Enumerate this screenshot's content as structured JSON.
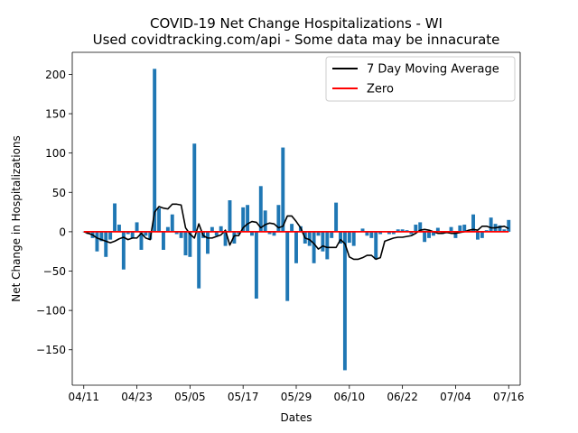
{
  "chart_data": {
    "type": "bar",
    "title_line1": "COVID-19 Net Change Hospitalizations - WI",
    "title_line2": "Used covidtracking.com/api - Some data may be innacurate",
    "xlabel": "Dates",
    "ylabel": "Net Change in Hospitalizations",
    "xlim": [
      -2.6,
      98.6
    ],
    "ylim": [
      -195,
      228
    ],
    "grid": false,
    "legend_placement": "top-right",
    "x_ticks": [
      {
        "x": 0,
        "label": "04/11"
      },
      {
        "x": 12,
        "label": "04/23"
      },
      {
        "x": 24,
        "label": "05/05"
      },
      {
        "x": 36,
        "label": "05/17"
      },
      {
        "x": 48,
        "label": "05/29"
      },
      {
        "x": 60,
        "label": "06/10"
      },
      {
        "x": 72,
        "label": "06/22"
      },
      {
        "x": 84,
        "label": "07/04"
      },
      {
        "x": 96,
        "label": "07/16"
      }
    ],
    "y_ticks": [
      {
        "y": 200,
        "label": "200"
      },
      {
        "y": 150,
        "label": "150"
      },
      {
        "y": 100,
        "label": "100"
      },
      {
        "y": 50,
        "label": "50"
      },
      {
        "y": 0,
        "label": "0"
      },
      {
        "y": -50,
        "label": "−50"
      },
      {
        "y": -100,
        "label": "−100"
      },
      {
        "y": -150,
        "label": "−150"
      }
    ],
    "bar_color": "#1f77b4",
    "series": [
      {
        "name": "7 Day Moving Average",
        "color": "#000000"
      },
      {
        "name": "Zero",
        "color": "#ff0000"
      }
    ],
    "x": [
      0,
      1,
      2,
      3,
      4,
      5,
      6,
      7,
      8,
      9,
      10,
      11,
      12,
      13,
      14,
      15,
      16,
      17,
      18,
      19,
      20,
      21,
      22,
      23,
      24,
      25,
      26,
      27,
      28,
      29,
      30,
      31,
      32,
      33,
      34,
      35,
      36,
      37,
      38,
      39,
      40,
      41,
      42,
      43,
      44,
      45,
      46,
      47,
      48,
      49,
      50,
      51,
      52,
      53,
      54,
      55,
      56,
      57,
      58,
      59,
      60,
      61,
      62,
      63,
      64,
      65,
      66,
      67,
      68,
      69,
      70,
      71,
      72,
      73,
      74,
      75,
      76,
      77,
      78,
      79,
      80,
      81,
      82,
      83,
      84,
      85,
      86,
      87,
      88,
      89,
      90,
      91,
      92,
      93,
      94,
      95,
      96
    ],
    "values": [
      0,
      -3,
      -8,
      -25,
      -12,
      -32,
      -10,
      36,
      9,
      -48,
      -3,
      -8,
      12,
      -23,
      -5,
      -10,
      207,
      30,
      -23,
      6,
      22,
      -3,
      -8,
      -30,
      -32,
      112,
      -72,
      -8,
      -28,
      6,
      -5,
      7,
      -18,
      40,
      -15,
      -3,
      31,
      34,
      -5,
      -85,
      58,
      27,
      -3,
      -5,
      34,
      107,
      -88,
      10,
      -40,
      7,
      -15,
      -18,
      -40,
      -5,
      -25,
      -35,
      -8,
      37,
      -15,
      -176,
      -14,
      -18,
      0,
      4,
      -5,
      -8,
      -35,
      -3,
      0,
      -3,
      -3,
      3,
      3,
      2,
      -3,
      9,
      12,
      -13,
      -8,
      -5,
      5,
      -3,
      0,
      6,
      -8,
      8,
      9,
      0,
      22,
      -10,
      -8,
      2,
      18,
      10,
      8,
      3,
      15
    ],
    "moving_avg": [
      0,
      -2,
      -4,
      -8,
      -10,
      -12,
      -14,
      -12,
      -9,
      -7,
      -10,
      -8,
      -8,
      -2,
      -8,
      -10,
      25,
      32,
      30,
      29,
      35,
      35,
      34,
      5,
      -3,
      -8,
      10,
      -5,
      -8,
      -8,
      -6,
      -4,
      2,
      -17,
      -5,
      -5,
      5,
      10,
      13,
      12,
      5,
      9,
      11,
      10,
      5,
      7,
      20,
      20,
      13,
      5,
      -8,
      -10,
      -15,
      -22,
      -18,
      -20,
      -20,
      -20,
      -10,
      -15,
      -32,
      -35,
      -35,
      -33,
      -30,
      -30,
      -35,
      -33,
      -12,
      -10,
      -8,
      -7,
      -7,
      -6,
      -5,
      -2,
      2,
      3,
      2,
      0,
      -2,
      -2,
      -1,
      -2,
      -2,
      -1,
      0,
      2,
      3,
      2,
      7,
      7,
      5,
      5,
      6,
      7,
      4
    ],
    "zero_line": [
      0,
      96
    ]
  }
}
